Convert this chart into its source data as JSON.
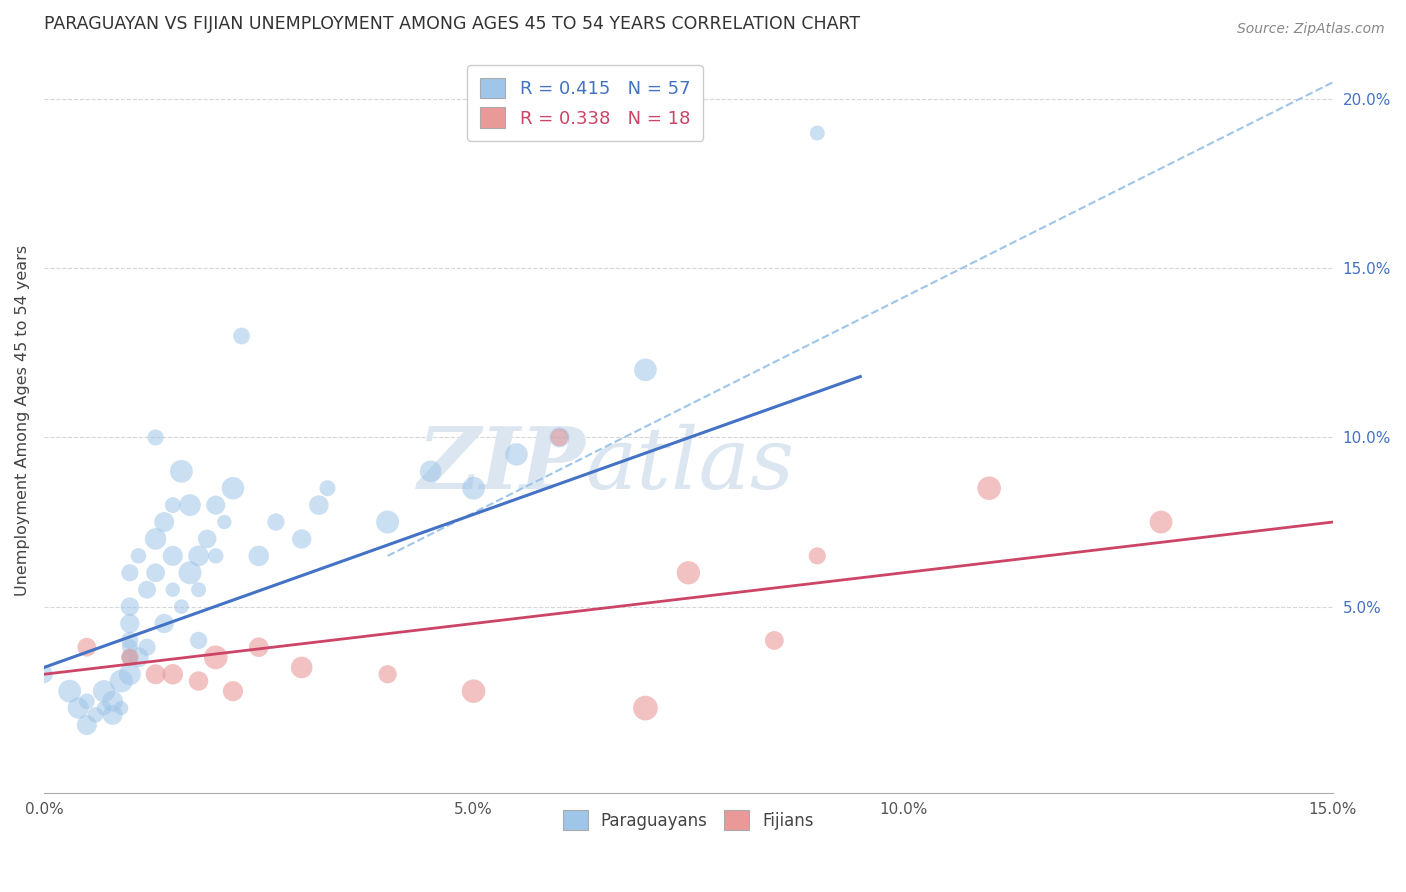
{
  "title": "PARAGUAYAN VS FIJIAN UNEMPLOYMENT AMONG AGES 45 TO 54 YEARS CORRELATION CHART",
  "source": "Source: ZipAtlas.com",
  "ylabel": "Unemployment Among Ages 45 to 54 years",
  "xlim": [
    0.0,
    0.15
  ],
  "ylim": [
    -0.005,
    0.215
  ],
  "paraguayan_R": 0.415,
  "paraguayan_N": 57,
  "fijian_R": 0.338,
  "fijian_N": 18,
  "blue_color": "#9fc5e8",
  "pink_color": "#ea9999",
  "blue_line_color": "#4472c4",
  "pink_line_color": "#cc4466",
  "dashed_line_color": "#9fc5e8",
  "watermark_color": "#dce6f1",
  "paraguayan_x": [
    0.0,
    0.003,
    0.004,
    0.005,
    0.005,
    0.006,
    0.007,
    0.007,
    0.008,
    0.008,
    0.009,
    0.009,
    0.01,
    0.01,
    0.01,
    0.01,
    0.01,
    0.01,
    0.01,
    0.01,
    0.011,
    0.011,
    0.012,
    0.012,
    0.013,
    0.013,
    0.013,
    0.014,
    0.014,
    0.015,
    0.015,
    0.015,
    0.016,
    0.016,
    0.017,
    0.017,
    0.018,
    0.018,
    0.018,
    0.019,
    0.02,
    0.02,
    0.021,
    0.022,
    0.023,
    0.025,
    0.027,
    0.03,
    0.032,
    0.033,
    0.04,
    0.045,
    0.05,
    0.055,
    0.06,
    0.07,
    0.09
  ],
  "paraguayan_y": [
    0.03,
    0.025,
    0.02,
    0.015,
    0.022,
    0.018,
    0.02,
    0.025,
    0.018,
    0.022,
    0.02,
    0.028,
    0.03,
    0.035,
    0.035,
    0.038,
    0.04,
    0.045,
    0.05,
    0.06,
    0.035,
    0.065,
    0.038,
    0.055,
    0.06,
    0.07,
    0.1,
    0.045,
    0.075,
    0.055,
    0.065,
    0.08,
    0.05,
    0.09,
    0.06,
    0.08,
    0.04,
    0.055,
    0.065,
    0.07,
    0.065,
    0.08,
    0.075,
    0.085,
    0.13,
    0.065,
    0.075,
    0.07,
    0.08,
    0.085,
    0.075,
    0.09,
    0.085,
    0.095,
    0.1,
    0.12,
    0.19
  ],
  "fijian_x": [
    0.005,
    0.01,
    0.013,
    0.015,
    0.018,
    0.02,
    0.022,
    0.025,
    0.03,
    0.04,
    0.05,
    0.06,
    0.07,
    0.075,
    0.085,
    0.09,
    0.11,
    0.13
  ],
  "fijian_y": [
    0.038,
    0.035,
    0.03,
    0.03,
    0.028,
    0.035,
    0.025,
    0.038,
    0.032,
    0.03,
    0.025,
    0.1,
    0.02,
    0.06,
    0.04,
    0.065,
    0.085,
    0.075
  ],
  "blue_trendline_x": [
    0.0,
    0.095
  ],
  "blue_trendline_y": [
    0.032,
    0.118
  ],
  "pink_trendline_x": [
    0.0,
    0.15
  ],
  "pink_trendline_y": [
    0.03,
    0.075
  ],
  "dashed_line_x": [
    0.04,
    0.15
  ],
  "dashed_line_y": [
    0.065,
    0.205
  ],
  "background_color": "#ffffff",
  "grid_color": "#cccccc",
  "right_ytick_labels": [
    "5.0%",
    "10.0%",
    "15.0%",
    "20.0%"
  ],
  "right_ytick_vals": [
    0.05,
    0.1,
    0.15,
    0.2
  ]
}
